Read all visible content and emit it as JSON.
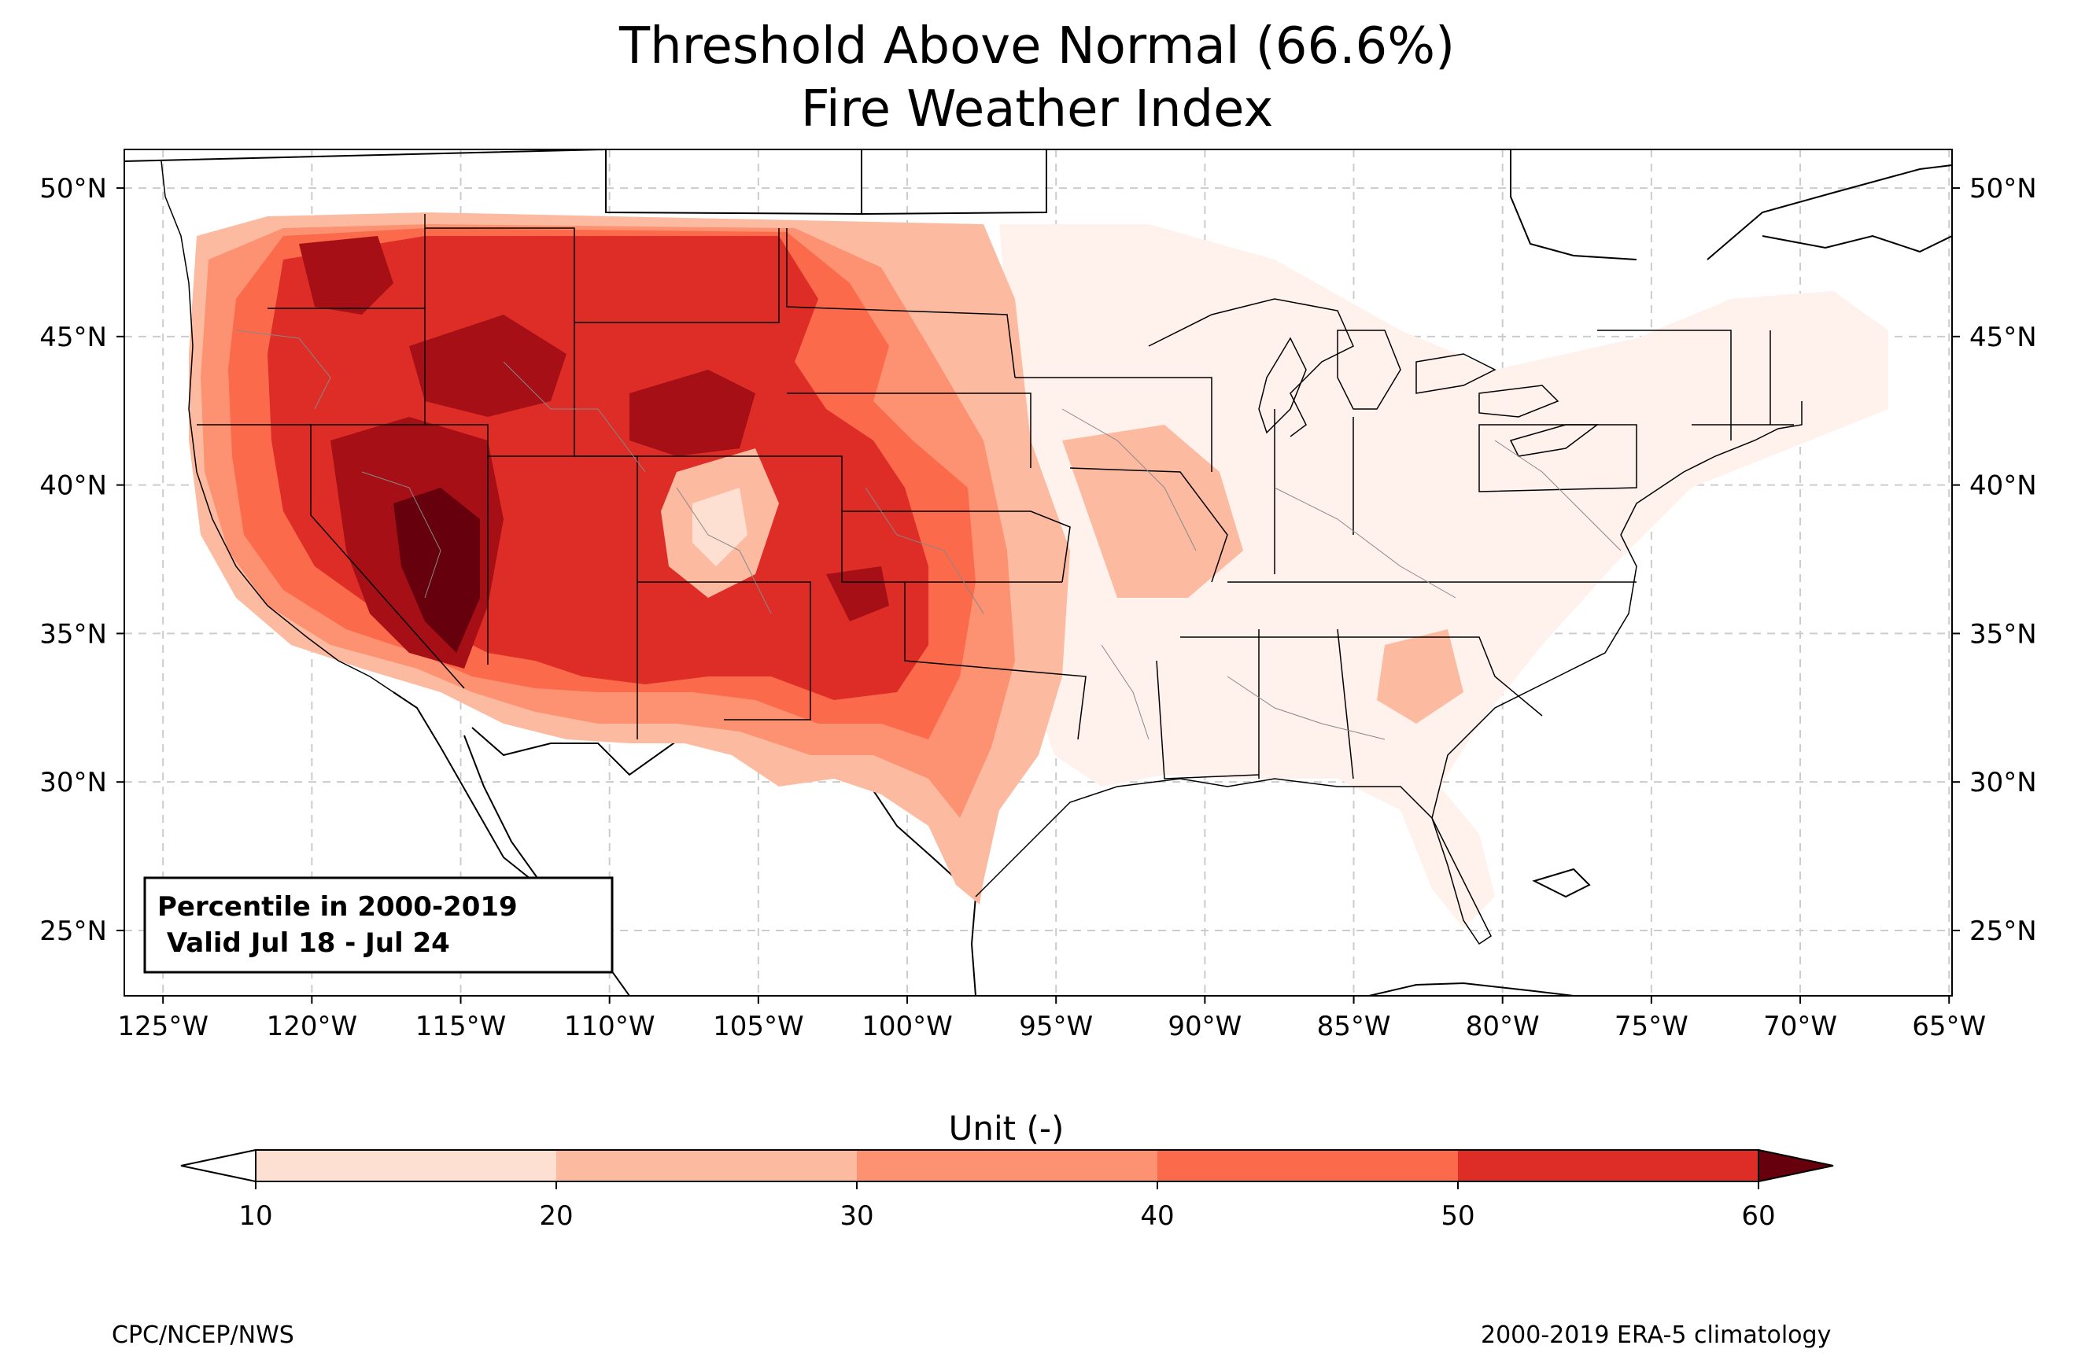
{
  "title": "Threshold Above Normal (66.6%)",
  "subtitle": "Fire Weather Index",
  "map": {
    "lon_ticks": [
      "125°W",
      "120°W",
      "115°W",
      "110°W",
      "105°W",
      "100°W",
      "95°W",
      "90°W",
      "85°W",
      "80°W",
      "75°W",
      "70°W",
      "65°W"
    ],
    "lat_ticks": [
      "50°N",
      "45°N",
      "40°N",
      "35°N",
      "30°N",
      "25°N"
    ],
    "lon_range": [
      -126.3,
      -64.9
    ],
    "lat_range": [
      22.8,
      51.3
    ],
    "grid": true,
    "info_box": {
      "line1": "Percentile in 2000-2019",
      "line2": " Valid Jul 18 - Jul 24",
      "placement": "bottom-left"
    },
    "regions": [
      {
        "name": "pacific-northwest-high",
        "level": 40
      },
      {
        "name": "idaho-montana-core",
        "level": 50
      },
      {
        "name": "great-basin-core",
        "level": 60
      },
      {
        "name": "wyoming-core",
        "level": 50
      },
      {
        "name": "texas-core",
        "level": 40
      },
      {
        "name": "east-light",
        "level": 10
      }
    ]
  },
  "colorbar": {
    "label": "Unit (-)",
    "ticks": [
      "10",
      "20",
      "30",
      "40",
      "50",
      "60"
    ],
    "colors": [
      "#fee0d2",
      "#fcbba1",
      "#fc9272",
      "#fb6a4a",
      "#de2d26",
      "#a50f15",
      "#67000d"
    ],
    "under_color": "#ffffff",
    "over_color": "#67000d"
  },
  "footer": {
    "left": "CPC/NCEP/NWS",
    "right": "2000-2019 ERA-5 climatology"
  }
}
